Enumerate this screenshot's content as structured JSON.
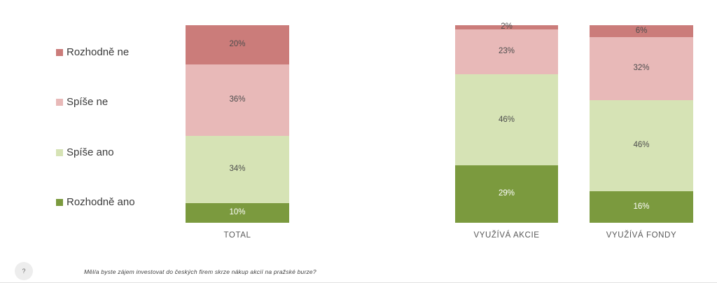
{
  "chart_data": {
    "type": "bar",
    "stacked": true,
    "orientation": "vertical",
    "unit": "%",
    "ylim": [
      0,
      100
    ],
    "grid": false,
    "legend_position": "left",
    "value_labels": "inside each segment as percent",
    "categories": [
      "TOTAL",
      "VYUŽÍVÁ AKCIE",
      "VYUŽÍVÁ FONDY"
    ],
    "series": [
      {
        "name": "Rozhodně ne",
        "color": "#cb7c7a",
        "label_color": "#4d4d4d",
        "values": [
          20,
          2,
          6
        ]
      },
      {
        "name": "Spíše ne",
        "color": "#e8b9b8",
        "label_color": "#4d4d4d",
        "values": [
          36,
          23,
          32
        ]
      },
      {
        "name": "Spíše ano",
        "color": "#d6e3b5",
        "label_color": "#4d4d4d",
        "values": [
          34,
          46,
          46
        ]
      },
      {
        "name": "Rozhodně ano",
        "color": "#7b9a3e",
        "label_color": "#ffffff",
        "values": [
          10,
          29,
          16
        ]
      }
    ]
  },
  "footer": {
    "help_glyph": "?",
    "question": "Měl/a byste zájem investovat do českých firem skrze nákup akcií na pražské burze?"
  },
  "colors": {
    "background": "#ffffff",
    "category_label": "#595959",
    "legend_text": "#3a3a3a",
    "help_circle_bg": "#ededed"
  }
}
